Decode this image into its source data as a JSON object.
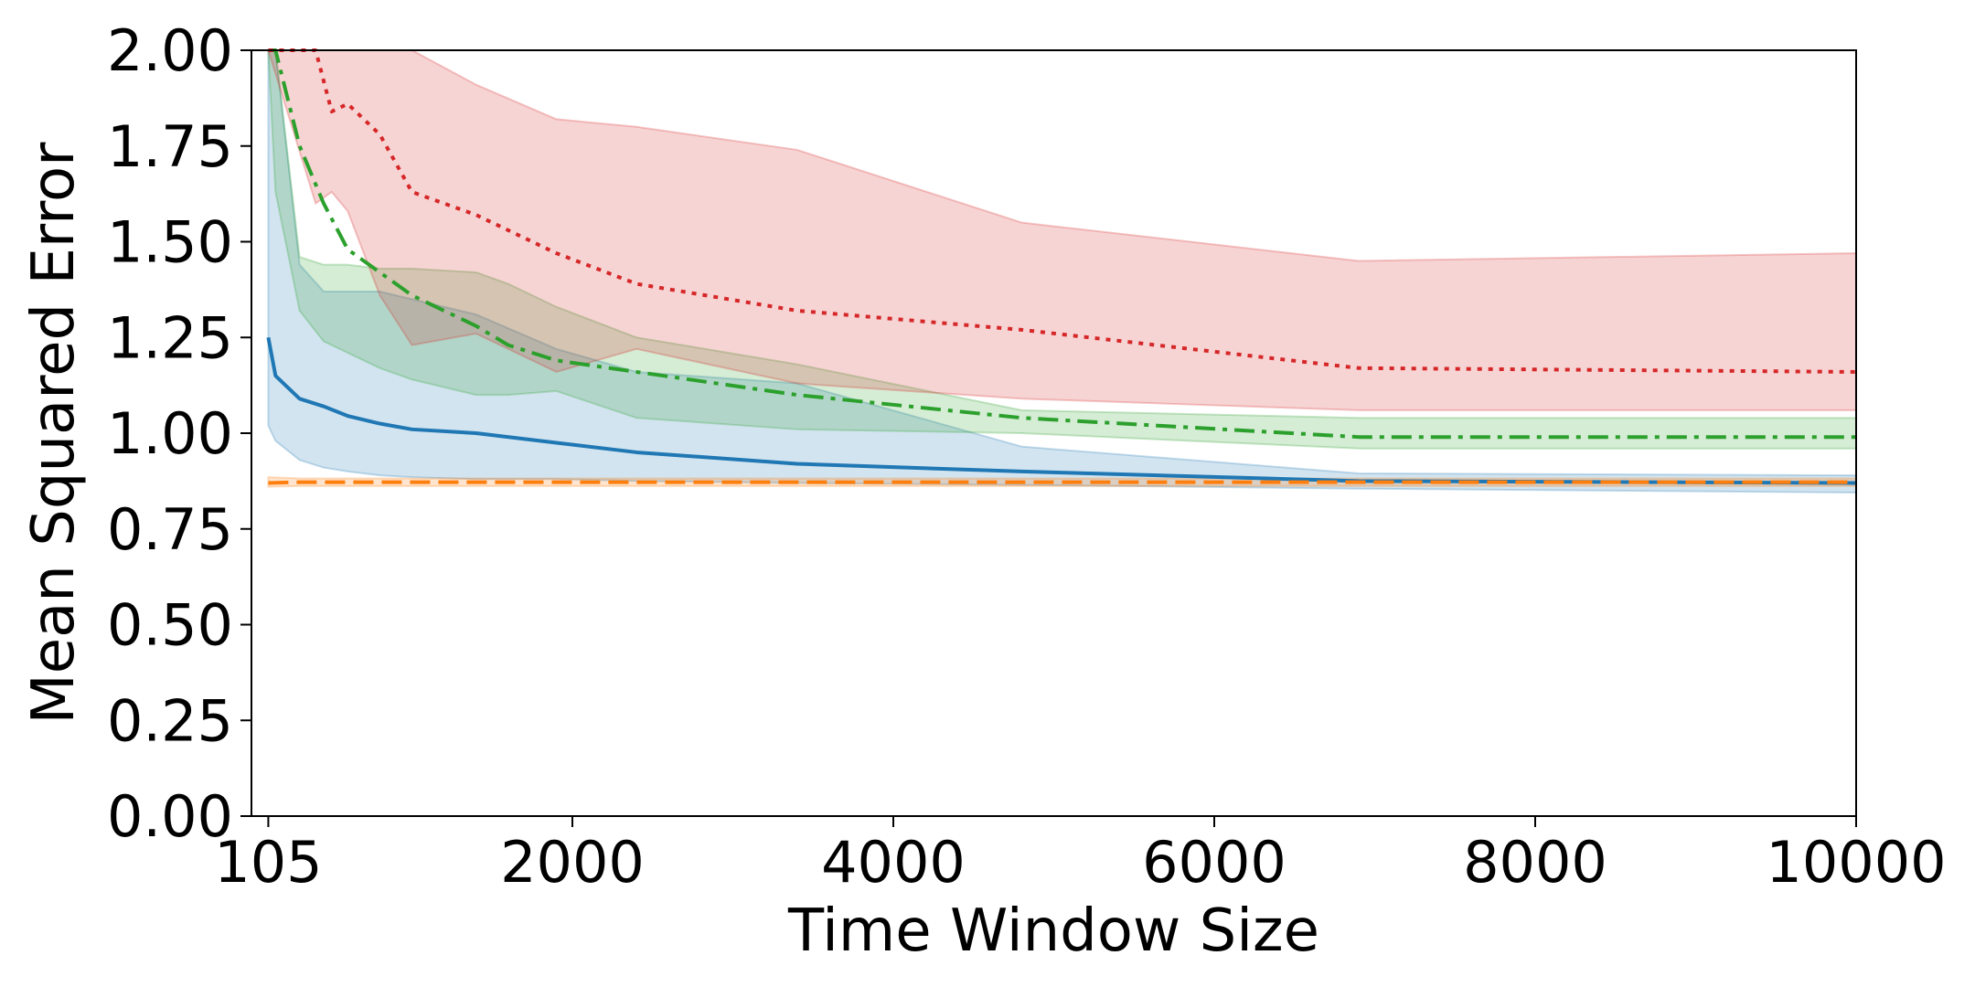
{
  "chart_data": {
    "type": "line",
    "title": "",
    "xlabel": "Time Window Size",
    "ylabel": "Mean Squared Error",
    "xlim": [
      0,
      10000
    ],
    "ylim": [
      0,
      2.0
    ],
    "xticks": [
      105,
      2000,
      4000,
      6000,
      8000,
      10000
    ],
    "xtick_labels": [
      "105",
      "2000",
      "4000",
      "6000",
      "8000",
      "10000"
    ],
    "yticks": [
      0,
      0.25,
      0.5,
      0.75,
      1.0,
      1.25,
      1.5,
      1.75,
      2.0
    ],
    "ytick_labels": [
      "0.00",
      "0.25",
      "0.50",
      "0.75",
      "1.00",
      "1.25",
      "1.50",
      "1.75",
      "2.00"
    ],
    "grid": false,
    "legend": null,
    "series": [
      {
        "color": "#1f77b4",
        "linestyle": "solid",
        "x": [
          105,
          150,
          300,
          450,
          600,
          800,
          1000,
          1400,
          1900,
          2400,
          3400,
          4800,
          6900,
          10000
        ],
        "y": [
          1.25,
          1.15,
          1.09,
          1.07,
          1.045,
          1.025,
          1.01,
          1.0,
          0.975,
          0.95,
          0.92,
          0.9,
          0.875,
          0.87
        ],
        "lower": [
          1.02,
          0.98,
          0.93,
          0.91,
          0.9,
          0.89,
          0.885,
          0.88,
          0.88,
          0.875,
          0.87,
          0.865,
          0.855,
          0.845
        ],
        "upper": [
          2.0,
          2.0,
          1.44,
          1.37,
          1.37,
          1.37,
          1.35,
          1.31,
          1.22,
          1.16,
          1.13,
          0.965,
          0.895,
          0.89
        ]
      },
      {
        "color": "#ff7f0e",
        "linestyle": "dashed",
        "x": [
          105,
          300,
          600,
          1000,
          2000,
          4000,
          6000,
          8000,
          10000
        ],
        "y": [
          0.87,
          0.872,
          0.872,
          0.872,
          0.872,
          0.872,
          0.872,
          0.872,
          0.872
        ],
        "lower": [
          0.86,
          0.862,
          0.862,
          0.862,
          0.862,
          0.862,
          0.862,
          0.862,
          0.862
        ],
        "upper": [
          0.885,
          0.882,
          0.882,
          0.882,
          0.882,
          0.882,
          0.882,
          0.882,
          0.882
        ]
      },
      {
        "color": "#2ca02c",
        "linestyle": "dashdot",
        "x": [
          105,
          150,
          300,
          450,
          600,
          800,
          1000,
          1400,
          1600,
          1900,
          2400,
          3400,
          4800,
          6900,
          10000
        ],
        "y": [
          2.0,
          2.0,
          1.75,
          1.6,
          1.48,
          1.42,
          1.36,
          1.28,
          1.23,
          1.19,
          1.16,
          1.1,
          1.04,
          0.99,
          0.99
        ],
        "lower": [
          2.0,
          1.63,
          1.32,
          1.24,
          1.21,
          1.17,
          1.14,
          1.1,
          1.1,
          1.11,
          1.04,
          1.01,
          1.0,
          0.96,
          0.96
        ],
        "upper": [
          2.0,
          2.0,
          1.46,
          1.44,
          1.44,
          1.43,
          1.43,
          1.42,
          1.39,
          1.33,
          1.25,
          1.18,
          1.06,
          1.04,
          1.04
        ]
      },
      {
        "color": "#d62728",
        "linestyle": "dotted",
        "x": [
          105,
          400,
          500,
          600,
          800,
          1000,
          1400,
          1900,
          2400,
          3400,
          4800,
          6900,
          10000
        ],
        "y": [
          2.0,
          2.0,
          1.84,
          1.86,
          1.78,
          1.63,
          1.57,
          1.47,
          1.39,
          1.32,
          1.27,
          1.17,
          1.16
        ],
        "lower": [
          2.0,
          1.6,
          1.63,
          1.58,
          1.36,
          1.23,
          1.26,
          1.16,
          1.22,
          1.13,
          1.09,
          1.06,
          1.06
        ],
        "upper": [
          2.0,
          2.0,
          2.0,
          2.0,
          2.0,
          2.0,
          1.91,
          1.82,
          1.8,
          1.74,
          1.55,
          1.45,
          1.47
        ]
      }
    ]
  }
}
